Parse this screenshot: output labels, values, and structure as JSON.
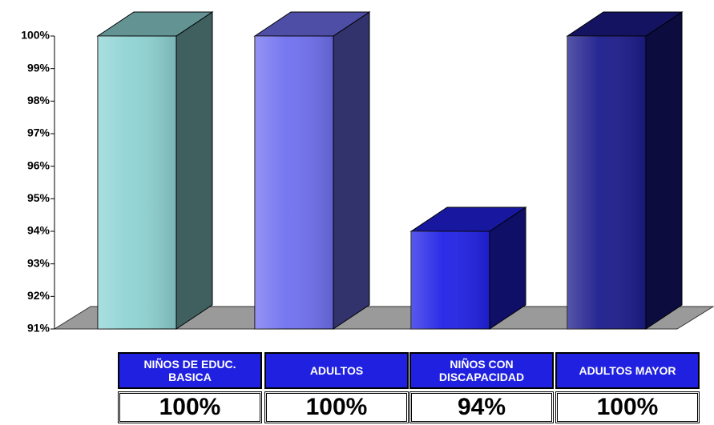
{
  "chart_data": {
    "type": "bar3d",
    "categories": [
      "NIÑOS DE EDUC. BASICA",
      "ADULTOS",
      "NIÑOS CON DISCAPACIDAD",
      "ADULTOS MAYOR"
    ],
    "values": [
      100,
      100,
      94,
      100
    ],
    "value_labels": [
      "100%",
      "100%",
      "94%",
      "100%"
    ],
    "colors": [
      "#8fd3d3",
      "#7070f0",
      "#2222e6",
      "#1c1c8c"
    ],
    "ylim": [
      91,
      100
    ],
    "yticks": [
      {
        "value": 91,
        "label": "91%"
      },
      {
        "value": 92,
        "label": "92%"
      },
      {
        "value": 93,
        "label": "93%"
      },
      {
        "value": 94,
        "label": "94%"
      },
      {
        "value": 95,
        "label": "95%"
      },
      {
        "value": 96,
        "label": "96%"
      },
      {
        "value": 97,
        "label": "97%"
      },
      {
        "value": 98,
        "label": "98%"
      },
      {
        "value": 99,
        "label": "99%"
      },
      {
        "value": 100,
        "label": "100%"
      }
    ]
  }
}
